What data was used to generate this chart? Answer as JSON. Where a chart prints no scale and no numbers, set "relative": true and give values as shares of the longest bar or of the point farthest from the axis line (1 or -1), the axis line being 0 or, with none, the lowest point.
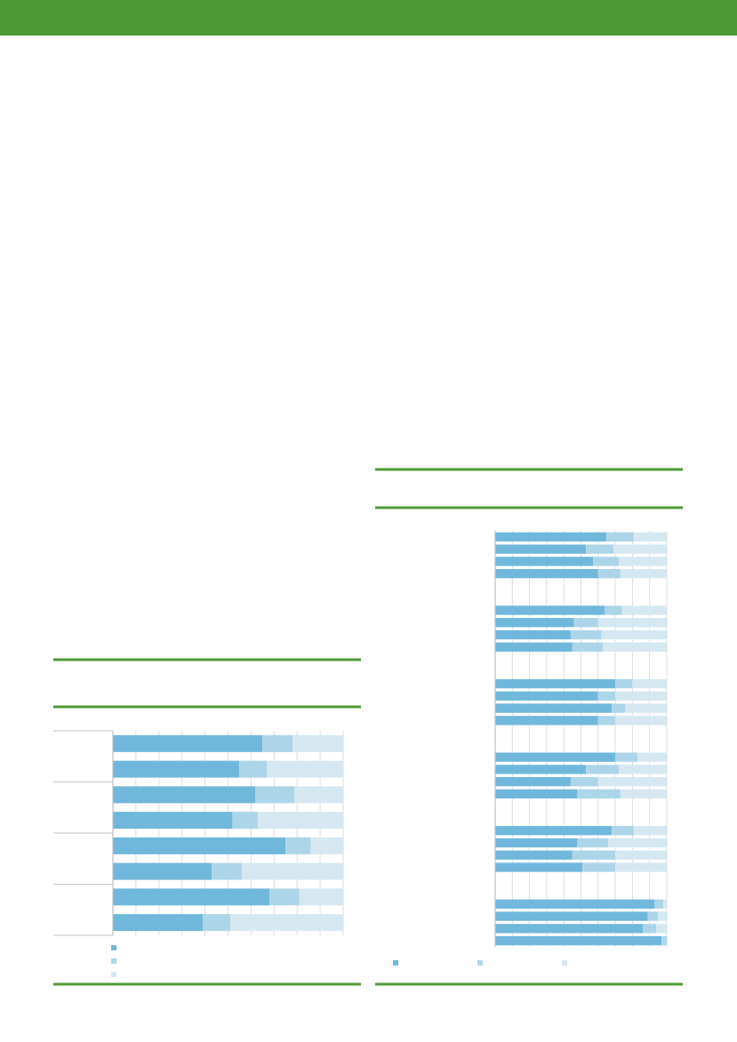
{
  "chart_data": [
    {
      "type": "bar",
      "orientation": "horizontal",
      "stacked": true,
      "relative": true,
      "grid": "x",
      "categories": [
        null,
        null,
        null,
        null,
        null,
        null,
        null,
        null
      ],
      "series": [
        {
          "color": "#6fb8db",
          "values": [
            0.65,
            0.55,
            0.62,
            0.52,
            0.75,
            0.43,
            0.68,
            0.39
          ]
        },
        {
          "color": "#acd5e9",
          "values": [
            0.13,
            0.12,
            0.17,
            0.11,
            0.11,
            0.13,
            0.13,
            0.12
          ]
        },
        {
          "color": "#d5e8f1",
          "values": [
            0.22,
            0.33,
            0.21,
            0.37,
            0.14,
            0.44,
            0.19,
            0.49
          ]
        }
      ]
    },
    {
      "type": "bar",
      "orientation": "horizontal",
      "stacked": true,
      "relative": true,
      "grid": "x",
      "categories": [
        null,
        null,
        null,
        null
      ],
      "series": [
        {
          "color": "#6fb8db",
          "values": [
            0.65,
            0.53,
            0.57,
            0.6
          ]
        },
        {
          "color": "#acd5e9",
          "values": [
            0.16,
            0.16,
            0.15,
            0.13
          ]
        },
        {
          "color": "#d5e8f1",
          "values": [
            0.19,
            0.31,
            0.28,
            0.27
          ]
        }
      ]
    },
    {
      "type": "bar",
      "orientation": "horizontal",
      "stacked": true,
      "relative": true,
      "grid": "x",
      "categories": [
        null,
        null,
        null,
        null
      ],
      "series": [
        {
          "color": "#6fb8db",
          "values": [
            0.64,
            0.46,
            0.44,
            0.45
          ]
        },
        {
          "color": "#acd5e9",
          "values": [
            0.1,
            0.14,
            0.18,
            0.18
          ]
        },
        {
          "color": "#d5e8f1",
          "values": [
            0.26,
            0.4,
            0.38,
            0.37
          ]
        }
      ]
    },
    {
      "type": "bar",
      "orientation": "horizontal",
      "stacked": true,
      "relative": true,
      "grid": "x",
      "categories": [
        null,
        null,
        null,
        null
      ],
      "series": [
        {
          "color": "#6fb8db",
          "values": [
            0.7,
            0.6,
            0.68,
            0.6
          ]
        },
        {
          "color": "#acd5e9",
          "values": [
            0.1,
            0.1,
            0.08,
            0.1
          ]
        },
        {
          "color": "#d5e8f1",
          "values": [
            0.2,
            0.3,
            0.24,
            0.3
          ]
        }
      ]
    },
    {
      "type": "bar",
      "orientation": "horizontal",
      "stacked": true,
      "relative": true,
      "grid": "x",
      "categories": [
        null,
        null,
        null,
        null
      ],
      "series": [
        {
          "color": "#6fb8db",
          "values": [
            0.7,
            0.53,
            0.44,
            0.48
          ]
        },
        {
          "color": "#acd5e9",
          "values": [
            0.13,
            0.19,
            0.16,
            0.25
          ]
        },
        {
          "color": "#d5e8f1",
          "values": [
            0.17,
            0.28,
            0.4,
            0.27
          ]
        }
      ]
    },
    {
      "type": "bar",
      "orientation": "horizontal",
      "stacked": true,
      "relative": true,
      "grid": "x",
      "categories": [
        null,
        null,
        null,
        null
      ],
      "series": [
        {
          "color": "#6fb8db",
          "values": [
            0.68,
            0.48,
            0.45,
            0.51
          ]
        },
        {
          "color": "#acd5e9",
          "values": [
            0.13,
            0.18,
            0.25,
            0.19
          ]
        },
        {
          "color": "#d5e8f1",
          "values": [
            0.19,
            0.34,
            0.3,
            0.3
          ]
        }
      ]
    },
    {
      "type": "bar",
      "orientation": "horizontal",
      "stacked": true,
      "relative": true,
      "grid": "x",
      "categories": [
        null,
        null,
        null,
        null
      ],
      "series": [
        {
          "color": "#6fb8db",
          "values": [
            0.93,
            0.89,
            0.86,
            0.97
          ]
        },
        {
          "color": "#acd5e9",
          "values": [
            0.05,
            0.06,
            0.08,
            0.03
          ]
        },
        {
          "color": "#d5e8f1",
          "values": [
            0.02,
            0.05,
            0.06,
            null
          ]
        }
      ]
    }
  ]
}
